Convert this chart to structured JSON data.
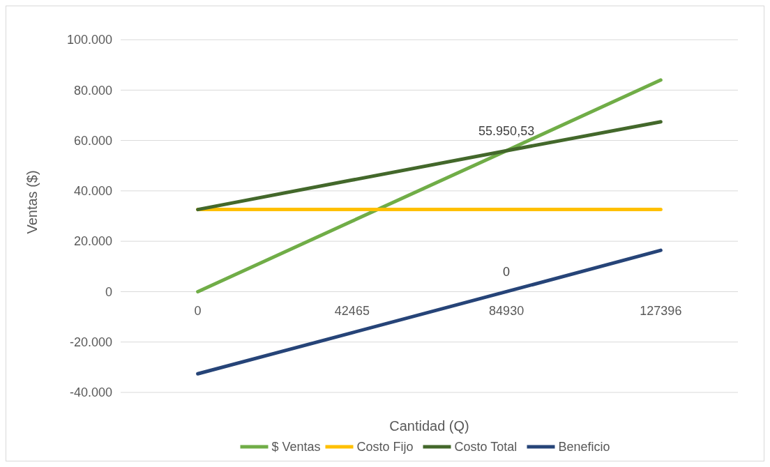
{
  "chart_data": {
    "type": "line",
    "xlabel": "Cantidad (Q)",
    "ylabel": "Ventas ($)",
    "categories": [
      "0",
      "42465",
      "84930",
      "127396"
    ],
    "series": [
      {
        "name": "$ Ventas",
        "color": "#70ad47",
        "values": [
          0,
          28000,
          55950.53,
          84000
        ]
      },
      {
        "name": "Costo Fijo",
        "color": "#ffc000",
        "values": [
          32600,
          32600,
          32600,
          32600
        ]
      },
      {
        "name": "Costo Total",
        "color": "#43682b",
        "values": [
          32600,
          44300,
          55950.53,
          67400
        ]
      },
      {
        "name": "Beneficio",
        "color": "#264478",
        "values": [
          -32600,
          -16300,
          0,
          16400
        ]
      }
    ],
    "annotations": [
      {
        "text": "55.950,53",
        "x": "84930",
        "y": 55950.53
      },
      {
        "text": "0",
        "x": "84930",
        "y": 0
      }
    ],
    "ylim": [
      -40000,
      100000
    ],
    "yticks": [
      {
        "value": -40000,
        "label": "-40.000"
      },
      {
        "value": -20000,
        "label": "-20.000"
      },
      0,
      {
        "value": 20000,
        "label": "20.000"
      },
      {
        "value": 40000,
        "label": "40.000"
      },
      {
        "value": 60000,
        "label": "60.000"
      },
      {
        "value": 80000,
        "label": "80.000"
      },
      {
        "value": 100000,
        "label": "100.000"
      }
    ],
    "grid": "y",
    "legend": "bottom",
    "marker": "none",
    "line_style": "solid"
  }
}
